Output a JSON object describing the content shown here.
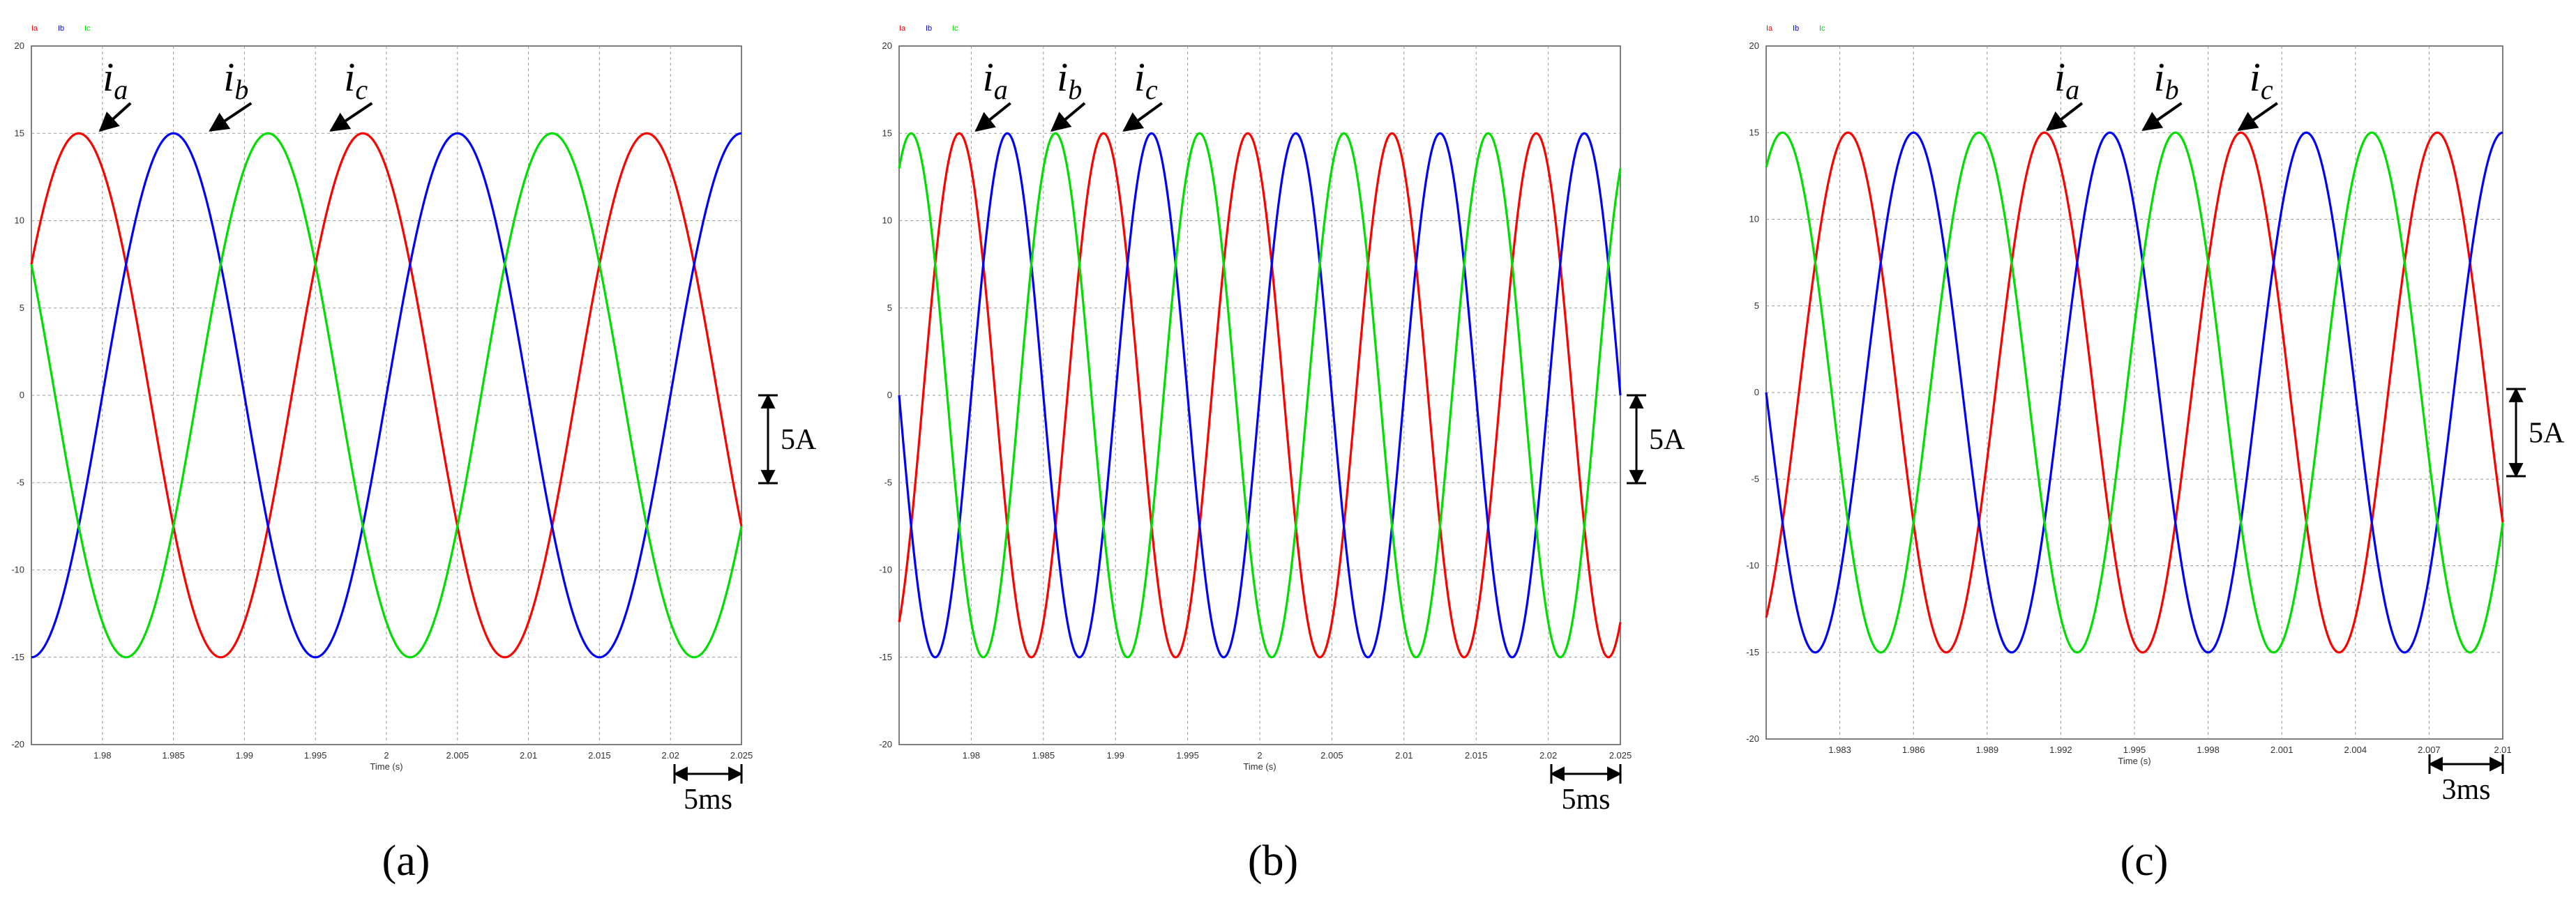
{
  "chart_data": [
    {
      "type": "line",
      "panel_label": "(a)",
      "legend": [
        "Ia",
        "Ib",
        "Ic"
      ],
      "xlabel": "Time (s)",
      "ylabel": "",
      "xlim": [
        1.975,
        2.025
      ],
      "ylim": [
        -20,
        20
      ],
      "x_ticks": [
        "1.98",
        "1.985",
        "1.99",
        "1.995",
        "2",
        "2.005",
        "2.01",
        "2.015",
        "2.02",
        "2.025"
      ],
      "y_ticks": [
        "20",
        "15",
        "10",
        "5",
        "0",
        "-5",
        "-10",
        "-15",
        "-20"
      ],
      "grid": true,
      "series": [
        {
          "name": "Ia",
          "color": "#ff0000",
          "amplitude": 15,
          "frequency_hz": 50,
          "phase_deg": 120
        },
        {
          "name": "Ib",
          "color": "#0000ff",
          "amplitude": 15,
          "frequency_hz": 50,
          "phase_deg": 0
        },
        {
          "name": "Ic",
          "color": "#00dd00",
          "amplitude": 15,
          "frequency_hz": 50,
          "phase_deg": -120
        }
      ],
      "curve_labels": [
        "i",
        "i",
        "i"
      ],
      "curve_subscripts": [
        "a",
        "b",
        "c"
      ],
      "scale_bars": {
        "current": "5A",
        "time": "5ms"
      }
    },
    {
      "type": "line",
      "panel_label": "(b)",
      "legend": [
        "Ia",
        "Ib",
        "Ic"
      ],
      "xlabel": "Time (s)",
      "ylabel": "",
      "xlim": [
        1.975,
        2.025
      ],
      "ylim": [
        -20,
        20
      ],
      "x_ticks": [
        "1.98",
        "1.985",
        "1.99",
        "1.995",
        "2",
        "2.005",
        "2.01",
        "2.015",
        "2.02",
        "2.025"
      ],
      "y_ticks": [
        "20",
        "15",
        "10",
        "5",
        "0",
        "-5",
        "-10",
        "-15",
        "-20"
      ],
      "grid": true,
      "series": [
        {
          "name": "Ia",
          "color": "#ff0000",
          "amplitude": 15,
          "frequency_hz": 100,
          "phase_deg": 120
        },
        {
          "name": "Ib",
          "color": "#0000ff",
          "amplitude": 15,
          "frequency_hz": 100,
          "phase_deg": 0
        },
        {
          "name": "Ic",
          "color": "#00dd00",
          "amplitude": 15,
          "frequency_hz": 100,
          "phase_deg": -120
        }
      ],
      "curve_labels": [
        "i",
        "i",
        "i"
      ],
      "curve_subscripts": [
        "a",
        "b",
        "c"
      ],
      "scale_bars": {
        "current": "5A",
        "time": "5ms"
      }
    },
    {
      "type": "line",
      "panel_label": "(c)",
      "legend": [
        "Ia",
        "Ib",
        "Ic"
      ],
      "xlabel": "Time (s)",
      "ylabel": "",
      "xlim": [
        1.98,
        2.01
      ],
      "ylim": [
        -20,
        20
      ],
      "x_ticks": [
        "1.983",
        "1.986",
        "1.989",
        "1.992",
        "1.995",
        "1.998",
        "2.001",
        "2.004",
        "2.007",
        "2.01"
      ],
      "y_ticks": [
        "20",
        "15",
        "10",
        "5",
        "0",
        "-5",
        "-10",
        "-15",
        "-20"
      ],
      "grid": true,
      "series": [
        {
          "name": "Ia",
          "color": "#ff0000",
          "amplitude": 15,
          "frequency_hz": 125,
          "phase_deg": 120
        },
        {
          "name": "Ib",
          "color": "#0000ff",
          "amplitude": 15,
          "frequency_hz": 125,
          "phase_deg": 0
        },
        {
          "name": "Ic",
          "color": "#00dd00",
          "amplitude": 15,
          "frequency_hz": 125,
          "phase_deg": -120
        }
      ],
      "curve_labels": [
        "i",
        "i",
        "i"
      ],
      "curve_subscripts": [
        "a",
        "b",
        "c"
      ],
      "scale_bars": {
        "current": "5A",
        "time": "3ms"
      }
    }
  ]
}
